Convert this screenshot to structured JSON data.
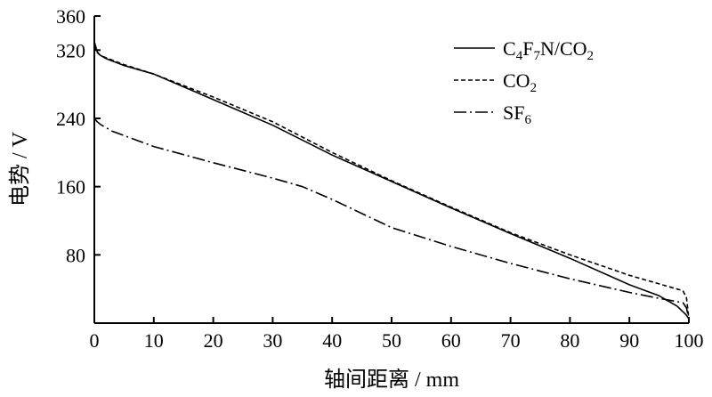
{
  "chart_data": {
    "type": "line",
    "xlabel": "轴间距离 / mm",
    "ylabel": "电势 / V",
    "xlim": [
      0,
      100
    ],
    "ylim": [
      0,
      360
    ],
    "xticks": [
      0,
      10,
      20,
      30,
      40,
      50,
      60,
      70,
      80,
      90,
      100
    ],
    "yticks": [
      80,
      160,
      240,
      320,
      360
    ],
    "legend_position": "top-right",
    "grid": false,
    "series": [
      {
        "name_parts": [
          {
            "t": "C",
            "sub": false
          },
          {
            "t": "4",
            "sub": true
          },
          {
            "t": "F",
            "sub": false
          },
          {
            "t": "7",
            "sub": true
          },
          {
            "t": "N/CO",
            "sub": false
          },
          {
            "t": "2",
            "sub": true
          }
        ],
        "style": "solid",
        "color": "#000000",
        "x": [
          0,
          0.5,
          1,
          2,
          5,
          10,
          20,
          30,
          40,
          50,
          60,
          70,
          80,
          90,
          95,
          98,
          99.5,
          100
        ],
        "y": [
          330,
          318,
          314,
          310,
          302,
          292,
          262,
          232,
          197,
          166,
          135,
          105,
          76,
          45,
          32,
          20,
          10,
          5
        ]
      },
      {
        "name_parts": [
          {
            "t": "CO",
            "sub": false
          },
          {
            "t": "2",
            "sub": true
          }
        ],
        "style": "dashed",
        "color": "#000000",
        "x": [
          0,
          0.5,
          1,
          2,
          5,
          10,
          20,
          30,
          40,
          50,
          60,
          70,
          80,
          90,
          95,
          99,
          99.6,
          100
        ],
        "y": [
          325,
          317,
          314,
          311,
          303,
          292,
          265,
          236,
          200,
          167,
          136,
          106,
          80,
          56,
          46,
          38,
          30,
          5
        ]
      },
      {
        "name_parts": [
          {
            "t": "SF",
            "sub": false
          },
          {
            "t": "6",
            "sub": true
          }
        ],
        "style": "dashdot",
        "color": "#000000",
        "x": [
          0,
          0.5,
          1,
          3,
          10,
          20,
          30,
          35,
          40,
          50,
          60,
          70,
          80,
          90,
          95,
          99,
          99.6,
          100
        ],
        "y": [
          240,
          236,
          233,
          225,
          207,
          188,
          170,
          160,
          145,
          112,
          90,
          70,
          52,
          36,
          29,
          24,
          18,
          5
        ]
      }
    ]
  }
}
